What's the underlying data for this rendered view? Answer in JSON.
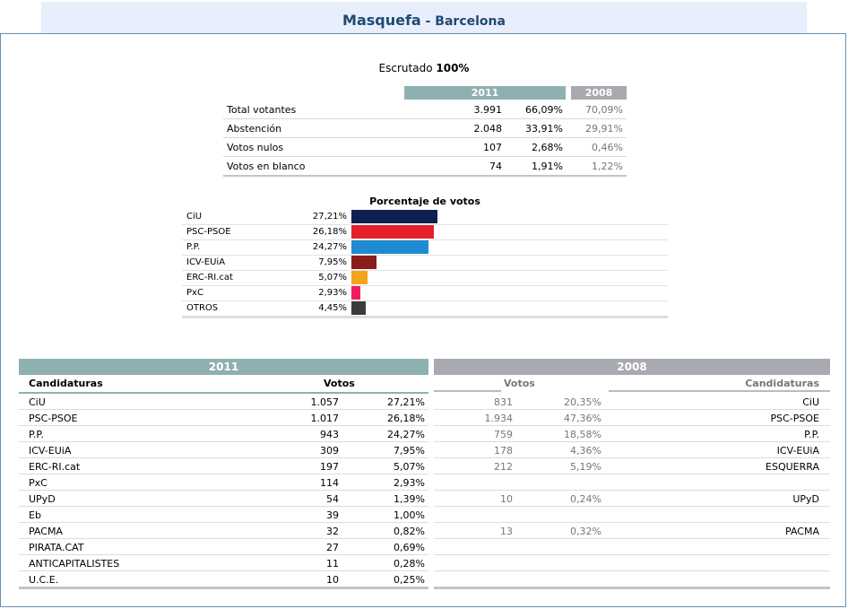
{
  "header": {
    "town": "Masquefa",
    "separator": " - ",
    "province": "Barcelona"
  },
  "escrutado": {
    "label": "Escrutado",
    "value": "100%"
  },
  "summary": {
    "year_current": "2011",
    "year_prev": "2008",
    "rows": [
      {
        "label": "Total votantes",
        "count": "3.991",
        "pct": "66,09%",
        "prev": "70,09%"
      },
      {
        "label": "Abstención",
        "count": "2.048",
        "pct": "33,91%",
        "prev": "29,91%"
      },
      {
        "label": "Votos nulos",
        "count": "107",
        "pct": "2,68%",
        "prev": "0,46%"
      },
      {
        "label": "Votos en blanco",
        "count": "74",
        "pct": "1,91%",
        "prev": "1,22%"
      }
    ]
  },
  "chart_data": {
    "type": "bar",
    "title": "Porcentaje de votos",
    "orientation": "horizontal",
    "categories": [
      "CiU",
      "PSC-PSOE",
      "P.P.",
      "ICV-EUiA",
      "ERC-RI.cat",
      "PxC",
      "OTROS"
    ],
    "labels": [
      "27,21%",
      "26,18%",
      "24,27%",
      "7,95%",
      "5,07%",
      "2,93%",
      "4,45%"
    ],
    "values": [
      27.21,
      26.18,
      24.27,
      7.95,
      5.07,
      2.93,
      4.45
    ],
    "colors": [
      "#0f2050",
      "#e3202c",
      "#1e8bd2",
      "#8b1c1c",
      "#f5a31a",
      "#f21d5f",
      "#3c3c3c"
    ]
  },
  "results": {
    "year_current": "2011",
    "year_prev": "2008",
    "col_candidaturas": "Candidaturas",
    "col_votos": "Votos",
    "rows": [
      {
        "party": "CiU",
        "votes": "1.057",
        "pct": "27,21%",
        "pvotes": "831",
        "ppct": "20,35%",
        "pparty": "CiU"
      },
      {
        "party": "PSC-PSOE",
        "votes": "1.017",
        "pct": "26,18%",
        "pvotes": "1.934",
        "ppct": "47,36%",
        "pparty": "PSC-PSOE"
      },
      {
        "party": "P.P.",
        "votes": "943",
        "pct": "24,27%",
        "pvotes": "759",
        "ppct": "18,58%",
        "pparty": "P.P."
      },
      {
        "party": "ICV-EUiA",
        "votes": "309",
        "pct": "7,95%",
        "pvotes": "178",
        "ppct": "4,36%",
        "pparty": "ICV-EUiA"
      },
      {
        "party": "ERC-RI.cat",
        "votes": "197",
        "pct": "5,07%",
        "pvotes": "212",
        "ppct": "5,19%",
        "pparty": "ESQUERRA"
      },
      {
        "party": "PxC",
        "votes": "114",
        "pct": "2,93%",
        "pvotes": "",
        "ppct": "",
        "pparty": ""
      },
      {
        "party": "UPyD",
        "votes": "54",
        "pct": "1,39%",
        "pvotes": "10",
        "ppct": "0,24%",
        "pparty": "UPyD"
      },
      {
        "party": "Eb",
        "votes": "39",
        "pct": "1,00%",
        "pvotes": "",
        "ppct": "",
        "pparty": ""
      },
      {
        "party": "PACMA",
        "votes": "32",
        "pct": "0,82%",
        "pvotes": "13",
        "ppct": "0,32%",
        "pparty": "PACMA"
      },
      {
        "party": "PIRATA.CAT",
        "votes": "27",
        "pct": "0,69%",
        "pvotes": "",
        "ppct": "",
        "pparty": ""
      },
      {
        "party": "ANTICAPITALISTES",
        "votes": "11",
        "pct": "0,28%",
        "pvotes": "",
        "ppct": "",
        "pparty": ""
      },
      {
        "party": "U.C.E.",
        "votes": "10",
        "pct": "0,25%",
        "pvotes": "",
        "ppct": "",
        "pparty": ""
      }
    ]
  },
  "colors": {
    "year_current": "#8fb0b0",
    "year_prev": "#a7aaaf",
    "title": "#1f4a73"
  }
}
